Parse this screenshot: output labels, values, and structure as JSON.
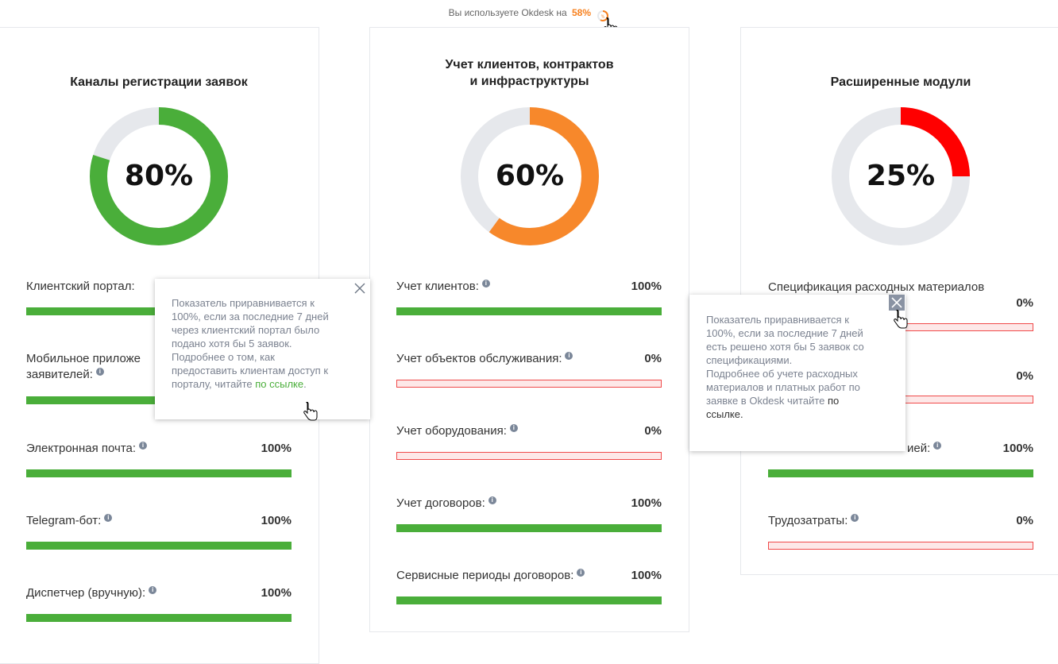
{
  "topbar": {
    "text": "Вы используете Okdesk на",
    "percent": "58%",
    "ring_icon": "percent-ring-icon",
    "ring_symbol": "%",
    "ring_value": 0.58,
    "accent": "#f7801e"
  },
  "cards": [
    {
      "title": "Каналы регистрации заявок",
      "percent_label": "80%",
      "percent_value": 0.8,
      "color": "#4aae3a",
      "metrics": [
        {
          "label": "Клиентский портал:",
          "value": ""
        },
        {
          "label_line1": "Мобильное приложе",
          "label_line2": "заявителей:",
          "value": ""
        },
        {
          "label": "Электронная почта:",
          "value": "100%"
        },
        {
          "label": "Telegram-бот:",
          "value": "100%"
        },
        {
          "label": "Диспетчер (вручную):",
          "value": "100%"
        }
      ]
    },
    {
      "title_line1": "Учет клиентов, контрактов",
      "title_line2": "и инфраструктуры",
      "percent_label": "60%",
      "percent_value": 0.6,
      "color": "#f7882b",
      "metrics": [
        {
          "label": "Учет клиентов:",
          "value": "100%"
        },
        {
          "label": "Учет объектов обслуживания:",
          "value": "0%"
        },
        {
          "label": "Учет оборудования:",
          "value": "0%"
        },
        {
          "label": "Учет договоров:",
          "value": "100%"
        },
        {
          "label": "Сервисные периоды договоров:",
          "value": "100%"
        }
      ]
    },
    {
      "title": "Расширенные модули",
      "percent_label": "25%",
      "percent_value": 0.25,
      "color": "#ff0000",
      "metrics": [
        {
          "label": "Спецификация расходных материалов",
          "value": "0%"
        },
        {
          "label": "",
          "value": "0%"
        },
        {
          "label": "ией:",
          "value": "100%"
        },
        {
          "label": "Трудозатраты:",
          "value": "0%"
        }
      ]
    }
  ],
  "tooltip_portal": {
    "lines": [
      "Показатель приравнивается к",
      "100%, если за последние 7 дней",
      "через клиентский портал было",
      "подано хотя бы 5 заявок.",
      "Подробнее о том, как",
      "предоставить клиентам доступ к"
    ],
    "last_prefix": "порталу, читайте ",
    "link": "по ссылке",
    "last_suffix": "."
  },
  "tooltip_spec": {
    "lines": [
      "Показатель приравнивается к",
      "100%, если за последние 7 дней",
      "есть решено хотя бы 5 заявок со",
      "спецификациями.",
      "Подробнее об учете расходных",
      "материалов и платных работ по"
    ],
    "last_prefix": "заявке в Okdesk читайте ",
    "link_line1": "по",
    "link_line2": "ссылке."
  },
  "colors": {
    "bar_full": "#4aae3a",
    "bar_empty_border": "#f04a4a",
    "ring_track": "#e6e8ec"
  }
}
